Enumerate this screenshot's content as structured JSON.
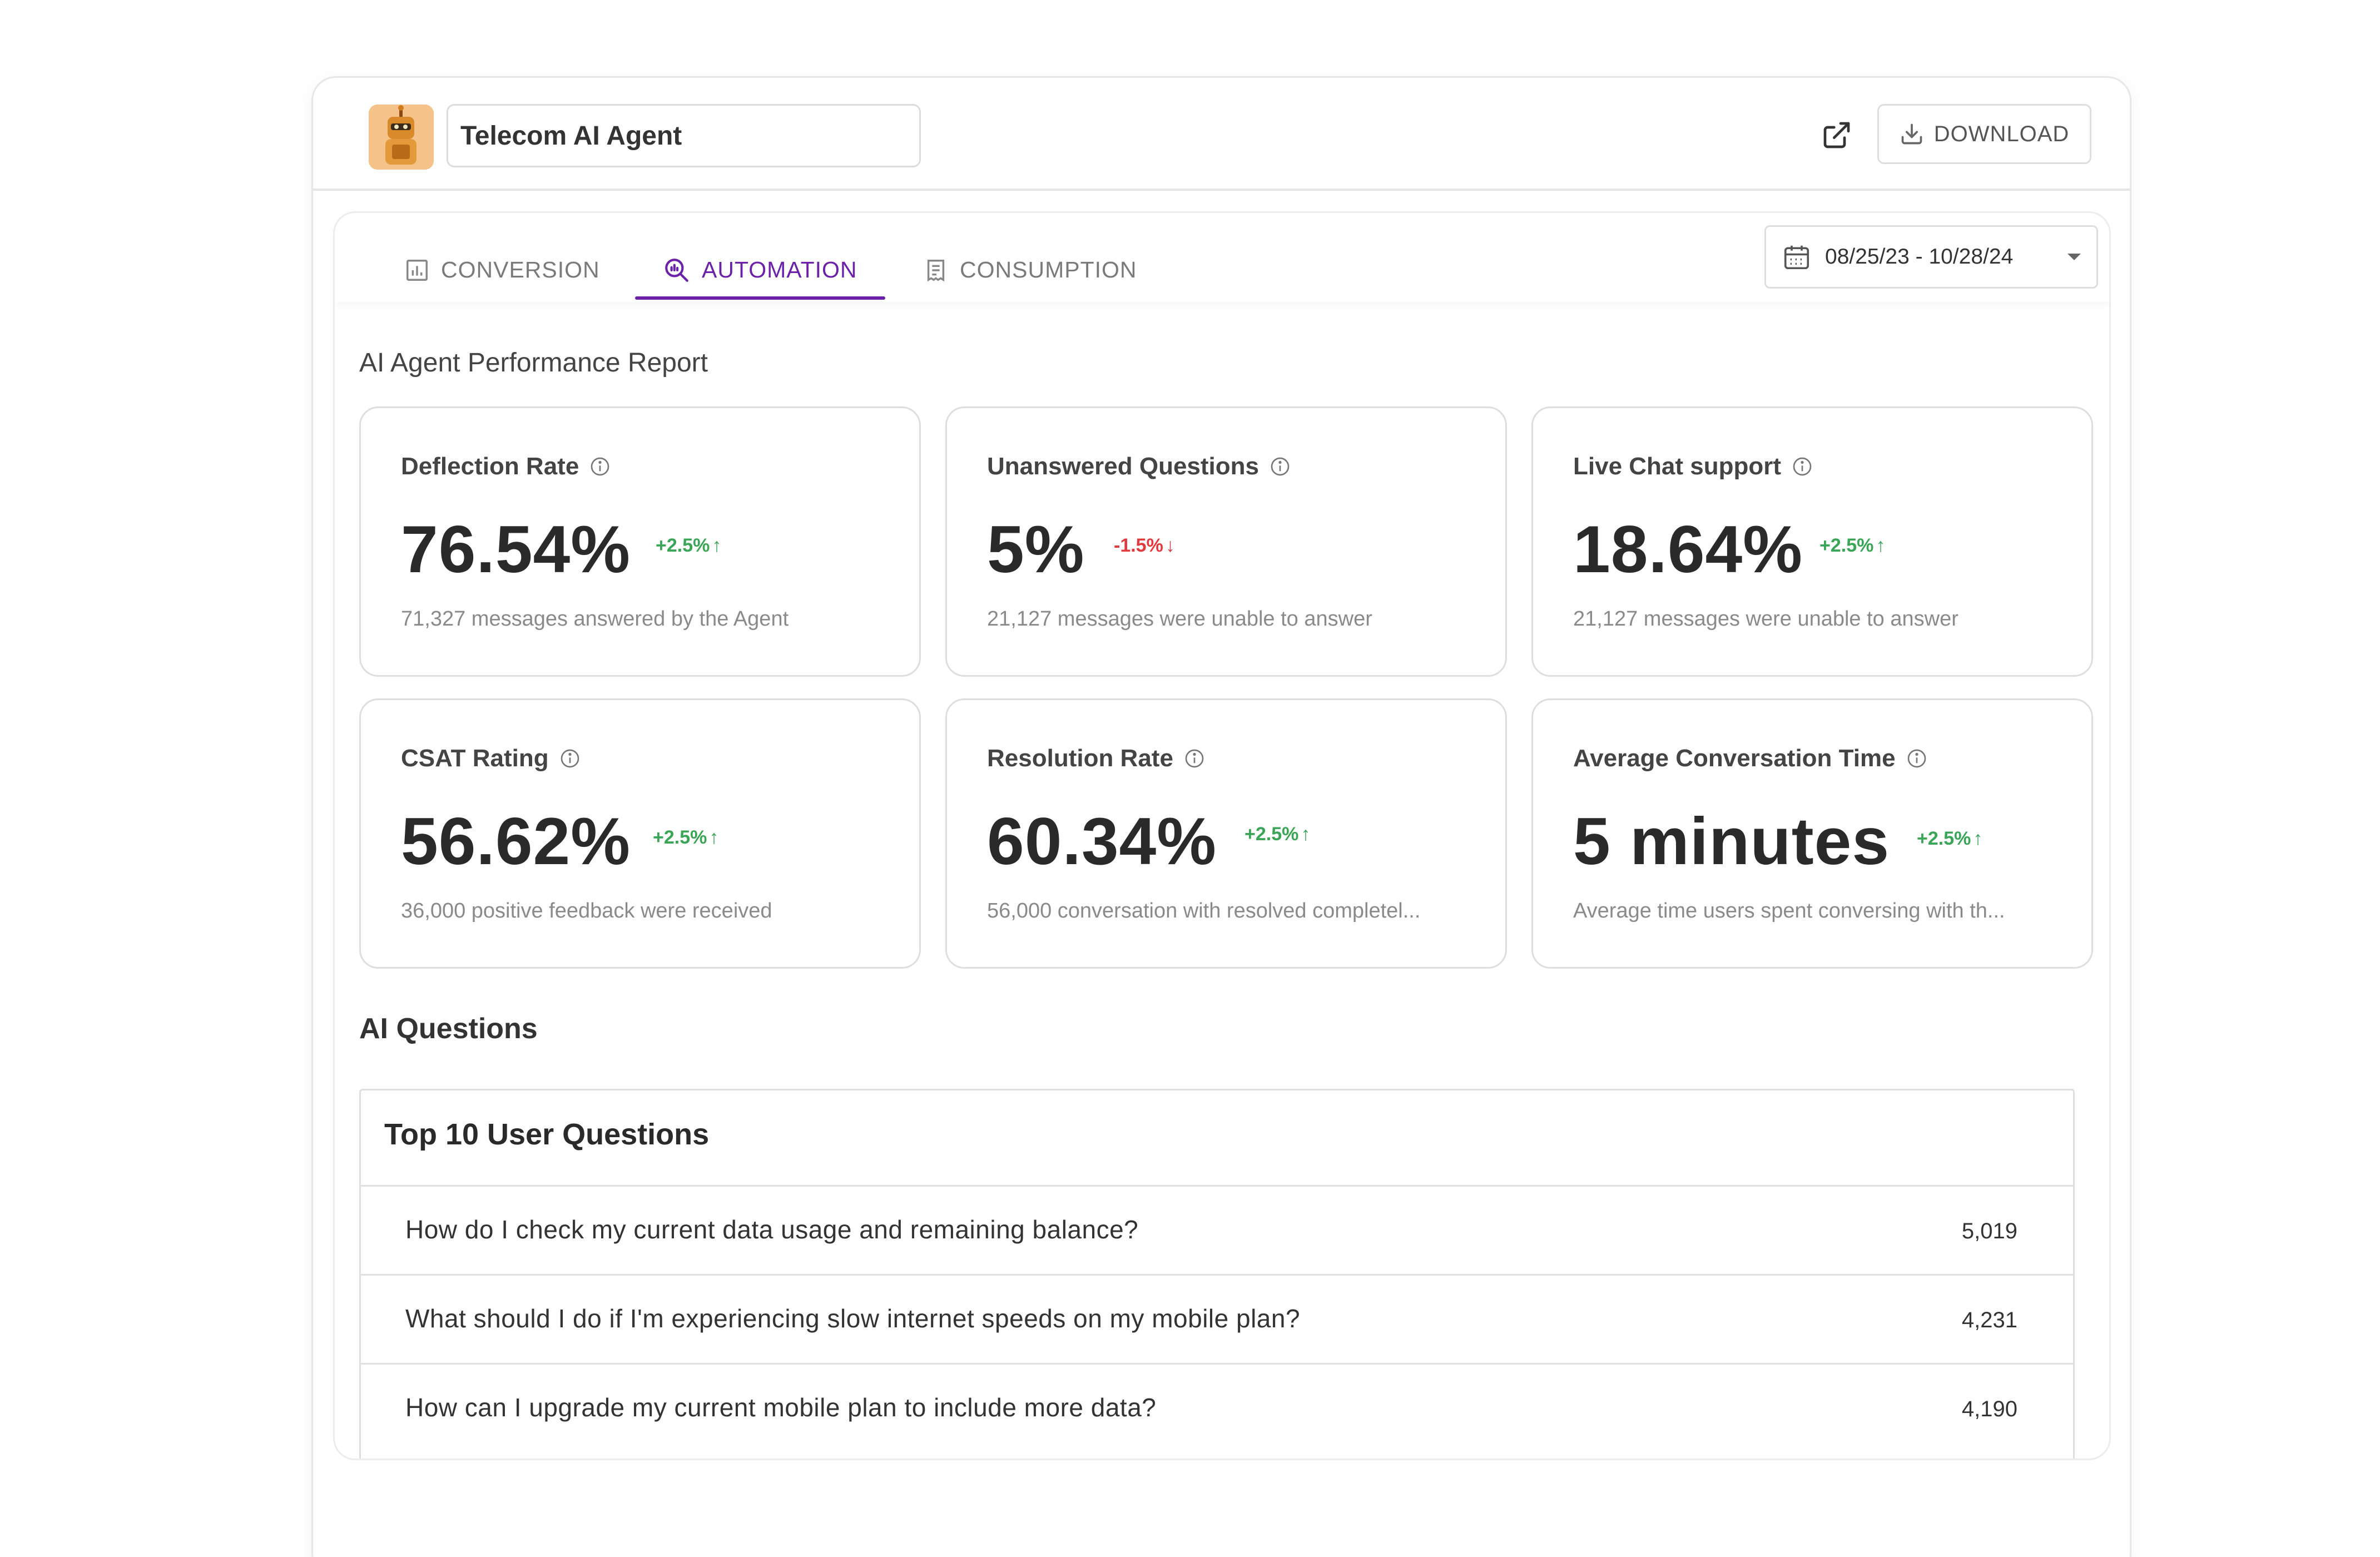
{
  "header": {
    "agent_name": "Telecom AI Agent",
    "download_label": "DOWNLOAD"
  },
  "tabs": [
    {
      "label": "CONVERSION",
      "icon": "bar-chart-icon",
      "active": false
    },
    {
      "label": "AUTOMATION",
      "icon": "search-analytics-icon",
      "active": true
    },
    {
      "label": "CONSUMPTION",
      "icon": "receipt-icon",
      "active": false
    }
  ],
  "date_range": "08/25/23 - 10/28/24",
  "report_title": "AI Agent Performance Report",
  "cards": [
    {
      "title": "Deflection Rate",
      "value": "76.54%",
      "delta": "+2.5%",
      "trend": "up",
      "sub": "71,327 messages answered by the Agent"
    },
    {
      "title": "Unanswered Questions",
      "value": "5%",
      "delta": "-1.5%",
      "trend": "down",
      "sub": "21,127 messages were unable to answer"
    },
    {
      "title": "Live Chat support",
      "value": "18.64%",
      "delta": "+2.5%",
      "trend": "up",
      "sub": "21,127 messages were unable to answer"
    },
    {
      "title": "CSAT Rating",
      "value": "56.62%",
      "delta": "+2.5%",
      "trend": "up",
      "sub": "36,000 positive feedback were received"
    },
    {
      "title": "Resolution Rate",
      "value": "60.34%",
      "delta": "+2.5%",
      "trend": "up",
      "sub": "56,000 conversation with resolved completel..."
    },
    {
      "title": "Average Conversation Time",
      "value": "5 minutes",
      "delta": "+2.5%",
      "trend": "up",
      "sub": "Average time users spent conversing with th..."
    }
  ],
  "ai_questions_title": "AI Questions",
  "top_questions": {
    "title": "Top 10 User Questions",
    "rows": [
      {
        "question": "How do I check my current data usage and remaining balance?",
        "count": "5,019"
      },
      {
        "question": "What should I do if I'm experiencing slow internet speeds on my mobile plan?",
        "count": "4,231"
      },
      {
        "question": "How can I upgrade my current mobile plan to include more data?",
        "count": "4,190"
      }
    ]
  },
  "colors": {
    "accent": "#6b21a8",
    "positive": "#3aa556",
    "negative": "#e0393e"
  }
}
